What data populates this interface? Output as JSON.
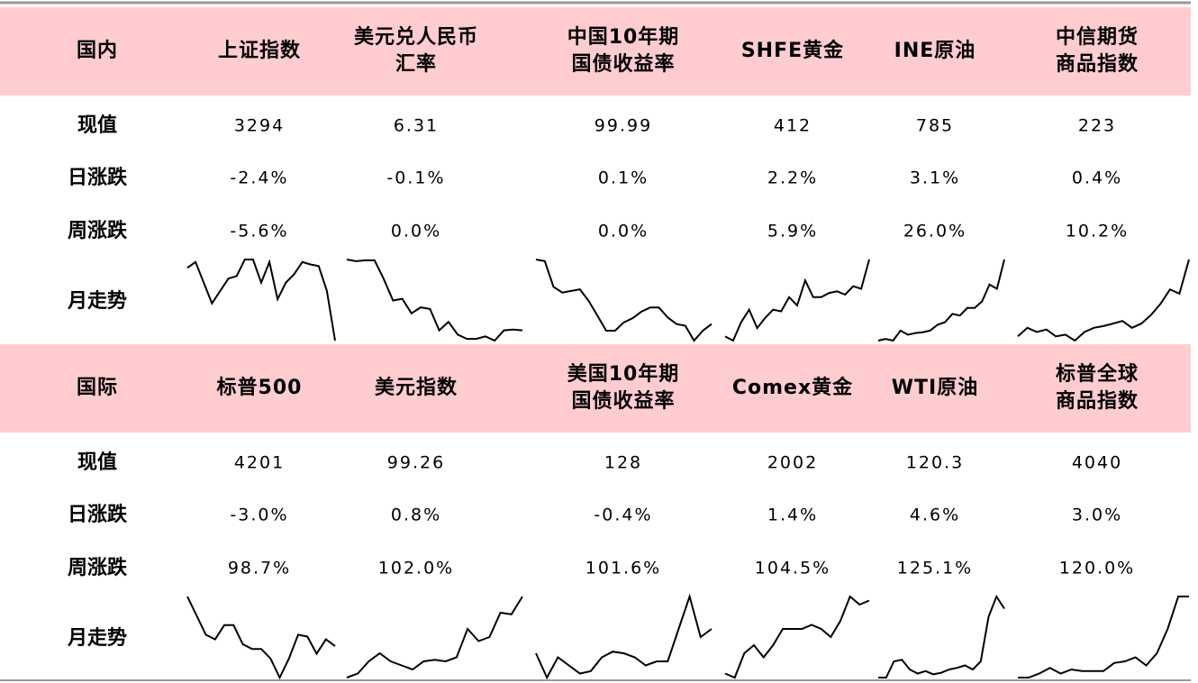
{
  "sections": [
    {
      "header": [
        [
          "国内"
        ],
        [
          "上证指数"
        ],
        [
          "美元兑人民币",
          "汇率"
        ],
        [
          "中国10年期",
          "国债收益率"
        ],
        [
          "SHFE黄金"
        ],
        [
          "INE原油"
        ],
        [
          "中信期货",
          "商品指数"
        ]
      ],
      "rows": [
        {
          "label": "现值",
          "values": [
            "3294",
            "6.31",
            "99.99",
            "412",
            "785",
            "223"
          ]
        },
        {
          "label": "日涨跌",
          "values": [
            "-2.4%",
            "-0.1%",
            "0.1%",
            "2.2%",
            "3.1%",
            "0.4%"
          ]
        },
        {
          "label": "周涨跌",
          "values": [
            "-5.6%",
            "0.0%",
            "0.0%",
            "5.9%",
            "26.0%",
            "10.2%"
          ]
        }
      ],
      "trend": {
        "label": "月走势",
        "series": [
          [
            88,
            95,
            70,
            45,
            60,
            75,
            78,
            98,
            98,
            70,
            95,
            50,
            70,
            80,
            95,
            92,
            90,
            60,
            0
          ],
          [
            98,
            96,
            97,
            97,
            75,
            50,
            52,
            35,
            42,
            40,
            15,
            25,
            10,
            5,
            5,
            8,
            3,
            15,
            16,
            15
          ],
          [
            98,
            96,
            65,
            58,
            60,
            62,
            48,
            30,
            12,
            12,
            22,
            27,
            35,
            40,
            40,
            28,
            20,
            18,
            0,
            12,
            20
          ],
          [
            8,
            3,
            25,
            40,
            18,
            30,
            40,
            38,
            55,
            45,
            75,
            55,
            55,
            60,
            62,
            58,
            68,
            65,
            100
          ],
          [
            3,
            5,
            3,
            15,
            10,
            12,
            13,
            15,
            22,
            25,
            35,
            33,
            42,
            42,
            50,
            70,
            65,
            100
          ],
          [
            10,
            20,
            15,
            18,
            10,
            12,
            5,
            15,
            20,
            22,
            25,
            28,
            20,
            25,
            35,
            48,
            65,
            60,
            100
          ]
        ]
      }
    },
    {
      "header": [
        [
          "国际"
        ],
        [
          "标普500"
        ],
        [
          "美元指数"
        ],
        [
          "美国10年期",
          "国债收益率"
        ],
        [
          "Comex黄金"
        ],
        [
          "WTI原油"
        ],
        [
          "标普全球",
          "商品指数"
        ]
      ],
      "rows": [
        {
          "label": "现值",
          "values": [
            "4201",
            "99.26",
            "128",
            "2002",
            "120.3",
            "4040"
          ]
        },
        {
          "label": "日涨跌",
          "values": [
            "-3.0%",
            "0.8%",
            "-0.4%",
            "1.4%",
            "4.6%",
            "3.0%"
          ]
        },
        {
          "label": "周涨跌",
          "values": [
            "98.7%",
            "102.0%",
            "101.6%",
            "104.5%",
            "125.1%",
            "120.0%"
          ]
        }
      ],
      "trend": {
        "label": "月走势",
        "series": [
          [
            100,
            80,
            60,
            55,
            70,
            70,
            50,
            45,
            45,
            35,
            15,
            35,
            60,
            58,
            40,
            55,
            48
          ],
          [
            0,
            5,
            20,
            30,
            20,
            15,
            10,
            20,
            22,
            20,
            25,
            60,
            45,
            50,
            80,
            78,
            100
          ],
          [
            30,
            0,
            25,
            15,
            5,
            8,
            25,
            32,
            30,
            25,
            15,
            20,
            20,
            60,
            100,
            50,
            60
          ],
          [
            5,
            0,
            30,
            40,
            25,
            40,
            60,
            60,
            60,
            65,
            60,
            50,
            70,
            100,
            90,
            95
          ],
          [
            0,
            0,
            20,
            22,
            10,
            5,
            8,
            4,
            6,
            10,
            12,
            15,
            10,
            20,
            75,
            100,
            85
          ],
          [
            0,
            0,
            5,
            12,
            5,
            10,
            8,
            8,
            8,
            18,
            20,
            25,
            15,
            30,
            60,
            100,
            100
          ]
        ]
      }
    }
  ]
}
